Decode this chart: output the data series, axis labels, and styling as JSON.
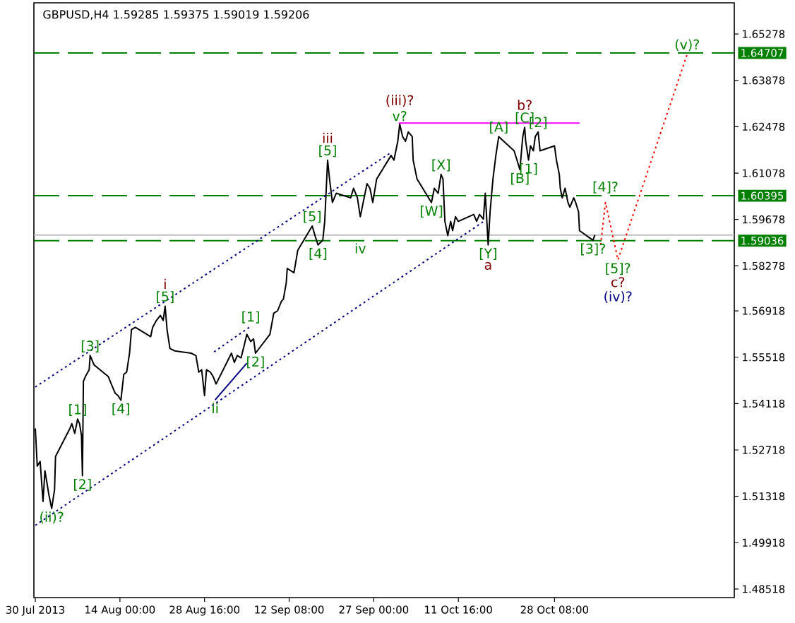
{
  "chart_data": {
    "type": "line",
    "title": "GBPUSD,H4 1.59285 1.59375 1.59019 1.59206",
    "xlim": [
      "2013-07-30T02:00",
      "2013-11-28T12:00"
    ],
    "xticks": [
      {
        "value": "2013-07-30T08:00",
        "label": "30 Jul 2013"
      },
      {
        "value": "2013-08-14T00:00",
        "label": "14 Aug 00:00"
      },
      {
        "value": "2013-08-28T16:00",
        "label": "28 Aug 16:00"
      },
      {
        "value": "2013-09-12T08:00",
        "label": "12 Sep 08:00"
      },
      {
        "value": "2013-09-27T00:00",
        "label": "27 Sep 00:00"
      },
      {
        "value": "2013-10-11T16:00",
        "label": "11 Oct 16:00"
      },
      {
        "value": "2013-10-28T08:00",
        "label": "28 Oct 08:00"
      }
    ],
    "ylim": [
      1.4826,
      1.6622
    ],
    "yticks": [
      1.48518,
      1.49918,
      1.51318,
      1.52718,
      1.54118,
      1.55518,
      1.56918,
      1.58278,
      1.59678,
      1.61078,
      1.62478,
      1.63878,
      1.65278
    ],
    "series": [
      {
        "color": "#000000",
        "line_style": "solid",
        "x": [
          "2013-07-30T08:00",
          "2013-07-30T16:00",
          "2013-07-31T04:00",
          "2013-07-31T16:00",
          "2013-08-01T00:00",
          "2013-08-01T16:00",
          "2013-08-02T04:00",
          "2013-08-02T16:00",
          "2013-08-02T20:00",
          "2013-08-05T08:00",
          "2013-08-05T16:00",
          "2013-08-06T04:00",
          "2013-08-06T16:00",
          "2013-08-07T00:00",
          "2013-08-07T08:00",
          "2013-08-07T12:00",
          "2013-08-07T16:00",
          "2013-08-08T00:00",
          "2013-08-08T16:00",
          "2013-08-08T20:00",
          "2013-08-09T12:00",
          "2013-08-12T00:00",
          "2013-08-12T12:00",
          "2013-08-13T04:00",
          "2013-08-13T16:00",
          "2013-08-14T04:00",
          "2013-08-14T16:00",
          "2013-08-15T04:00",
          "2013-08-15T16:00",
          "2013-08-16T00:00",
          "2013-08-16T16:00",
          "2013-08-19T08:00",
          "2013-08-19T16:00",
          "2013-08-20T08:00",
          "2013-08-21T00:00",
          "2013-08-21T12:00",
          "2013-08-21T20:00",
          "2013-08-22T04:00",
          "2013-08-22T16:00",
          "2013-08-23T12:00",
          "2013-08-26T08:00",
          "2013-08-27T04:00",
          "2013-08-27T16:00",
          "2013-08-28T04:00",
          "2013-08-28T16:00",
          "2013-08-29T00:00",
          "2013-08-29T16:00",
          "2013-08-30T04:00",
          "2013-08-30T16:00",
          "2013-09-02T08:00",
          "2013-09-02T20:00",
          "2013-09-03T08:00",
          "2013-09-04T00:00",
          "2013-09-04T12:00",
          "2013-09-05T00:00",
          "2013-09-05T16:00",
          "2013-09-06T04:00",
          "2013-09-06T12:00",
          "2013-09-09T00:00",
          "2013-09-09T16:00",
          "2013-09-10T08:00",
          "2013-09-11T00:00",
          "2013-09-11T08:00",
          "2013-09-11T20:00",
          "2013-09-12T00:00",
          "2013-09-13T04:00",
          "2013-09-13T20:00",
          "2013-09-16T08:00",
          "2013-09-16T20:00",
          "2013-09-17T08:00",
          "2013-09-18T04:00",
          "2013-09-18T12:00",
          "2013-09-19T00:00",
          "2013-09-19T08:00",
          "2013-09-19T20:00",
          "2013-09-20T12:00",
          "2013-09-23T00:00",
          "2013-09-23T12:00",
          "2013-09-24T04:00",
          "2013-09-24T16:00",
          "2013-09-25T04:00",
          "2013-09-25T20:00",
          "2013-09-26T08:00",
          "2013-09-26T20:00",
          "2013-09-27T12:00",
          "2013-09-30T00:00",
          "2013-09-30T12:00",
          "2013-10-01T04:00",
          "2013-10-01T12:00",
          "2013-10-02T00:00",
          "2013-10-02T12:00",
          "2013-10-03T00:00",
          "2013-10-03T16:00",
          "2013-10-03T20:00",
          "2013-10-04T12:00",
          "2013-10-07T00:00",
          "2013-10-07T12:00",
          "2013-10-08T04:00",
          "2013-10-08T16:00",
          "2013-10-09T00:00",
          "2013-10-09T08:00",
          "2013-10-09T20:00",
          "2013-10-10T08:00",
          "2013-10-10T16:00",
          "2013-10-11T04:00",
          "2013-10-11T16:00",
          "2013-10-14T08:00",
          "2013-10-14T20:00",
          "2013-10-15T08:00",
          "2013-10-16T00:00",
          "2013-10-16T08:00",
          "2013-10-16T20:00",
          "2013-10-17T04:00",
          "2013-10-17T16:00",
          "2013-10-18T04:00",
          "2013-10-18T16:00",
          "2013-10-21T08:00",
          "2013-10-21T20:00",
          "2013-10-22T08:00",
          "2013-10-22T20:00",
          "2013-10-23T04:00",
          "2013-10-23T08:00",
          "2013-10-23T20:00",
          "2013-10-24T04:00",
          "2013-10-24T16:00",
          "2013-10-25T00:00",
          "2013-10-25T12:00",
          "2013-10-25T20:00",
          "2013-10-28T08:00",
          "2013-10-28T16:00",
          "2013-10-29T04:00",
          "2013-10-29T08:00",
          "2013-10-29T16:00",
          "2013-10-30T04:00",
          "2013-10-30T16:00",
          "2013-10-31T00:00",
          "2013-10-31T16:00",
          "2013-11-01T00:00",
          "2013-11-01T12:00",
          "2013-11-01T16:00",
          "2013-11-04T00:00",
          "2013-11-04T08:00"
        ],
        "values": [
          1.5337,
          1.5223,
          1.5237,
          1.5116,
          1.5209,
          1.5138,
          1.5095,
          1.5152,
          1.5252,
          1.5337,
          1.5351,
          1.5322,
          1.5365,
          1.5351,
          1.5315,
          1.5194,
          1.5479,
          1.5493,
          1.5514,
          1.5557,
          1.5529,
          1.5493,
          1.5471,
          1.5443,
          1.5436,
          1.5422,
          1.55,
          1.5507,
          1.5564,
          1.5635,
          1.5642,
          1.5614,
          1.5642,
          1.5663,
          1.5678,
          1.5663,
          1.5706,
          1.5635,
          1.5578,
          1.5571,
          1.5564,
          1.5557,
          1.5507,
          1.5514,
          1.5436,
          1.5514,
          1.5507,
          1.5493,
          1.5471,
          1.5564,
          1.5536,
          1.5557,
          1.555,
          1.5585,
          1.5621,
          1.5599,
          1.5607,
          1.5564,
          1.5621,
          1.5685,
          1.5692,
          1.5721,
          1.5727,
          1.5777,
          1.582,
          1.5807,
          1.5875,
          1.5948,
          1.5918,
          1.5891,
          1.5905,
          1.5962,
          1.6147,
          1.609,
          1.6019,
          1.6047,
          1.6033,
          1.6062,
          1.6033,
          1.5976,
          1.6019,
          1.6076,
          1.6062,
          1.6019,
          1.609,
          1.6161,
          1.6147,
          1.6204,
          1.6256,
          1.6218,
          1.6204,
          1.6232,
          1.6218,
          1.6147,
          1.609,
          1.6019,
          1.6062,
          1.6047,
          1.6104,
          1.609,
          1.5962,
          1.5919,
          1.5962,
          1.5934,
          1.5976,
          1.5962,
          1.5983,
          1.5962,
          1.5983,
          1.5969,
          1.6047,
          1.5891,
          1.5991,
          1.609,
          1.6161,
          1.6218,
          1.6175,
          1.6147,
          1.6118,
          1.6218,
          1.6246,
          1.6204,
          1.6147,
          1.619,
          1.6175,
          1.6218,
          1.6232,
          1.6175,
          1.619,
          1.6147,
          1.6104,
          1.6062,
          1.6033,
          1.6062,
          1.6019,
          1.6005,
          1.6033,
          1.6019,
          1.5991,
          1.5934,
          1.5905,
          1.5921
        ]
      },
      {
        "color": "#000080",
        "line_style": "dotted",
        "x": [
          "2013-07-30T08:00",
          "2013-09-30T00:00"
        ],
        "values": [
          1.5462,
          1.617
        ]
      },
      {
        "color": "#000080",
        "line_style": "dotted",
        "x": [
          "2013-07-30T08:00",
          "2013-10-16T00:00"
        ],
        "values": [
          1.5044,
          1.5961
        ]
      },
      {
        "color": "#000080",
        "line_style": "dotted",
        "x": [
          "2013-08-30T08:00",
          "2013-09-05T16:00"
        ],
        "values": [
          1.5568,
          1.5645
        ]
      },
      {
        "color": "#000080",
        "line_style": "solid",
        "x": [
          "2013-08-30T12:00",
          "2013-09-05T00:00"
        ],
        "values": [
          1.5423,
          1.5534
        ]
      },
      {
        "color": "#ff00ff",
        "line_style": "solid",
        "x": [
          "2013-10-01T08:00",
          "2013-11-01T16:00"
        ],
        "values": [
          1.6259,
          1.6259
        ]
      },
      {
        "color": "#ff0000",
        "line_style": "dotted",
        "x": [
          "2013-11-05T08:00",
          "2013-11-06T04:00",
          "2013-11-08T08:00",
          "2013-11-20T08:00"
        ],
        "values": [
          1.5891,
          1.6019,
          1.5846,
          1.6467
        ]
      }
    ],
    "ref_lines": [
      {
        "axis": "y",
        "value": 1.64707,
        "label": "1.64707",
        "color": "#008000",
        "line_style": "dashed"
      },
      {
        "axis": "y",
        "value": 1.60395,
        "label": "1.60395",
        "color": "#008000",
        "line_style": "dashed"
      },
      {
        "axis": "y",
        "value": 1.59206,
        "color": "#c0c0c0",
        "line_style": "solid"
      },
      {
        "axis": "y",
        "value": 1.59036,
        "label": "1.59036",
        "color": "#008000",
        "line_style": "dashed"
      }
    ],
    "annotations": [
      {
        "text": "[1]",
        "x": "2013-08-06T16:00",
        "y": 1.5365
      },
      {
        "text": "[2]",
        "x": "2013-08-07T12:00",
        "y": 1.5194
      },
      {
        "text": "[3]",
        "x": "2013-08-08T20:00",
        "y": 1.5557
      },
      {
        "text": "[4]",
        "x": "2013-08-14T04:00",
        "y": 1.5422
      },
      {
        "text": "[5]",
        "x": "2013-08-21T20:00",
        "y": 1.5706
      },
      {
        "text": "i",
        "x": "2013-08-21T20:00",
        "y": 1.5706
      },
      {
        "text": "ii",
        "x": "2013-08-30T12:00",
        "y": 1.5423
      },
      {
        "text": "[1]",
        "x": "2013-09-05T16:00",
        "y": 1.5645
      },
      {
        "text": "[2]",
        "x": "2013-09-06T12:00",
        "y": 1.5564
      },
      {
        "text": "(ii)?",
        "x": "2013-08-02T04:00",
        "y": 1.5095
      },
      {
        "text": "[5]",
        "x": "2013-09-16T08:00",
        "y": 1.5948
      },
      {
        "text": "[4]",
        "x": "2013-09-17T08:00",
        "y": 1.5891
      },
      {
        "text": "[5]",
        "x": "2013-09-19T00:00",
        "y": 1.6147
      },
      {
        "text": "iii",
        "x": "2013-09-19T00:00",
        "y": 1.6147
      },
      {
        "text": "v?",
        "x": "2013-10-01T12:00",
        "y": 1.6256
      },
      {
        "text": "(iii)?",
        "x": "2013-10-01T12:00",
        "y": 1.6256
      },
      {
        "text": "iv",
        "x": "2013-09-24T16:00",
        "y": 1.5976
      },
      {
        "text": "[W]",
        "x": "2013-10-07T00:00",
        "y": 1.6019
      },
      {
        "text": "[X]",
        "x": "2013-10-08T16:00",
        "y": 1.6104
      },
      {
        "text": "[Y]",
        "x": "2013-10-16T20:00",
        "y": 1.5891
      },
      {
        "text": "a",
        "x": "2013-10-16T20:00",
        "y": 1.5891
      },
      {
        "text": "[A]",
        "x": "2013-10-18T16:00",
        "y": 1.6218
      },
      {
        "text": "[B]",
        "x": "2013-10-22T08:00",
        "y": 1.6118
      },
      {
        "text": "[C]",
        "x": "2013-10-23T04:00",
        "y": 1.6246
      },
      {
        "text": "b?",
        "x": "2013-10-23T04:00",
        "y": 1.6246
      },
      {
        "text": "[1]",
        "x": "2013-10-23T20:00",
        "y": 1.6147
      },
      {
        "text": "[2]",
        "x": "2013-10-25T12:00",
        "y": 1.6232
      },
      {
        "text": "[3]?",
        "x": "2013-11-04T00:00",
        "y": 1.5905
      },
      {
        "text": "[4]?",
        "x": "2013-11-06T04:00",
        "y": 1.6019
      },
      {
        "text": "[5]?",
        "x": "2013-11-08T08:00",
        "y": 1.5846
      },
      {
        "text": "c?",
        "x": "2013-11-08T08:00",
        "y": 1.5846
      },
      {
        "text": "(iv)?",
        "x": "2013-11-08T08:00",
        "y": 1.5846
      },
      {
        "text": "(v)?",
        "x": "2013-11-20T08:00",
        "y": 1.6467
      }
    ]
  }
}
